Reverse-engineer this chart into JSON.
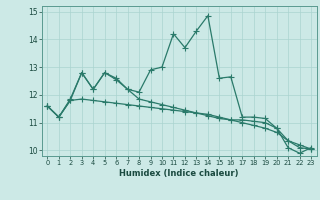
{
  "xlabel": "Humidex (Indice chaleur)",
  "xlim": [
    -0.5,
    23.5
  ],
  "ylim": [
    9.8,
    15.2
  ],
  "yticks": [
    10,
    11,
    12,
    13,
    14,
    15
  ],
  "xticks": [
    0,
    1,
    2,
    3,
    4,
    5,
    6,
    7,
    8,
    9,
    10,
    11,
    12,
    13,
    14,
    15,
    16,
    17,
    18,
    19,
    20,
    21,
    22,
    23
  ],
  "background_color": "#cce9e6",
  "grid_color": "#aad4d0",
  "line_color": "#2a7a6a",
  "line1_x": [
    0,
    1,
    2,
    3,
    4,
    5,
    6,
    7,
    8,
    9,
    10,
    11,
    12,
    13,
    14,
    15,
    16,
    17,
    18,
    19,
    20,
    21,
    22,
    23
  ],
  "line1_y": [
    11.6,
    11.2,
    11.8,
    12.8,
    12.2,
    12.8,
    12.6,
    12.2,
    12.1,
    12.9,
    13.0,
    14.2,
    13.7,
    14.3,
    14.85,
    12.6,
    12.65,
    11.2,
    11.2,
    11.15,
    10.8,
    10.1,
    9.9,
    10.1
  ],
  "line2_x": [
    0,
    1,
    2,
    3,
    4,
    5,
    6,
    7,
    8,
    9,
    10,
    11,
    12,
    13,
    14,
    15,
    16,
    17,
    18,
    19,
    20,
    21,
    22,
    23
  ],
  "line2_y": [
    11.6,
    11.2,
    11.85,
    12.8,
    12.2,
    12.8,
    12.55,
    12.2,
    11.85,
    11.75,
    11.65,
    11.55,
    11.45,
    11.35,
    11.25,
    11.15,
    11.1,
    11.1,
    11.05,
    11.0,
    10.8,
    10.35,
    10.1,
    10.05
  ],
  "line3_x": [
    0,
    1,
    2,
    3,
    4,
    5,
    6,
    7,
    8,
    9,
    10,
    11,
    12,
    13,
    14,
    15,
    16,
    17,
    18,
    19,
    20,
    21,
    22,
    23
  ],
  "line3_y": [
    11.6,
    11.2,
    11.8,
    11.85,
    11.8,
    11.75,
    11.7,
    11.65,
    11.6,
    11.55,
    11.5,
    11.45,
    11.4,
    11.35,
    11.3,
    11.2,
    11.1,
    11.0,
    10.9,
    10.8,
    10.65,
    10.35,
    10.2,
    10.05
  ]
}
